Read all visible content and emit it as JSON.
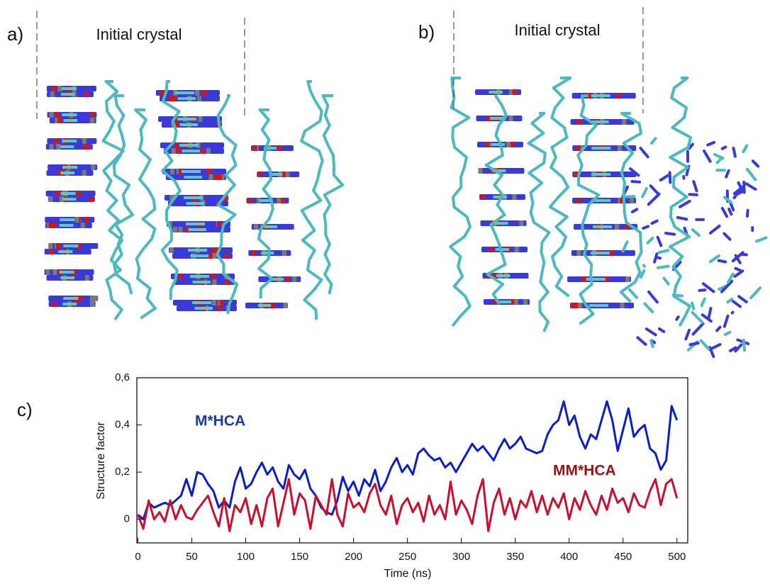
{
  "panels": {
    "a": {
      "label": "a)",
      "caption": "Initial crystal"
    },
    "b": {
      "label": "b)",
      "caption": "Initial crystal"
    },
    "c": {
      "label": "c)"
    }
  },
  "chart_data": {
    "type": "line",
    "xlabel": "Time (ns)",
    "ylabel": "Structure factor",
    "x": [
      0,
      5,
      10,
      15,
      20,
      25,
      30,
      35,
      40,
      45,
      50,
      55,
      60,
      65,
      70,
      75,
      80,
      85,
      90,
      95,
      100,
      105,
      110,
      115,
      120,
      125,
      130,
      135,
      140,
      145,
      150,
      155,
      160,
      165,
      170,
      175,
      180,
      185,
      190,
      195,
      200,
      205,
      210,
      215,
      220,
      225,
      230,
      235,
      240,
      245,
      250,
      255,
      260,
      265,
      270,
      275,
      280,
      285,
      290,
      295,
      300,
      305,
      310,
      315,
      320,
      325,
      330,
      335,
      340,
      345,
      350,
      355,
      360,
      365,
      370,
      375,
      380,
      385,
      390,
      395,
      400,
      405,
      410,
      415,
      420,
      425,
      430,
      435,
      440,
      445,
      450,
      455,
      460,
      465,
      470,
      475,
      480,
      485,
      490,
      495,
      500
    ],
    "series": [
      {
        "name": "M*HCA",
        "color": "#0a1ec4",
        "label_color": "#1c3c9c",
        "values": [
          0.02,
          0.0,
          0.07,
          0.05,
          0.06,
          0.07,
          0.06,
          0.08,
          0.1,
          0.17,
          0.1,
          0.2,
          0.19,
          0.15,
          0.12,
          0.05,
          0.08,
          0.05,
          0.16,
          0.22,
          0.13,
          0.15,
          0.2,
          0.24,
          0.19,
          0.22,
          0.16,
          0.13,
          0.23,
          0.19,
          0.17,
          0.21,
          0.13,
          0.1,
          0.05,
          0.03,
          0.02,
          0.08,
          0.18,
          0.12,
          0.16,
          0.1,
          0.17,
          0.14,
          0.21,
          0.12,
          0.16,
          0.22,
          0.26,
          0.2,
          0.23,
          0.19,
          0.28,
          0.3,
          0.27,
          0.25,
          0.26,
          0.22,
          0.24,
          0.2,
          0.24,
          0.28,
          0.32,
          0.29,
          0.31,
          0.28,
          0.25,
          0.3,
          0.34,
          0.3,
          0.32,
          0.35,
          0.3,
          0.29,
          0.28,
          0.29,
          0.36,
          0.4,
          0.42,
          0.5,
          0.4,
          0.44,
          0.35,
          0.3,
          0.36,
          0.34,
          0.42,
          0.5,
          0.42,
          0.29,
          0.38,
          0.47,
          0.35,
          0.38,
          0.4,
          0.3,
          0.28,
          0.21,
          0.25,
          0.48,
          0.42
        ]
      },
      {
        "name": "MM*HCA",
        "color": "#c8102e",
        "label_color": "#9c1010",
        "values": [
          0.02,
          -0.04,
          0.08,
          0.0,
          0.03,
          -0.01,
          0.08,
          0.0,
          0.06,
          0.01,
          0.0,
          0.04,
          0.07,
          0.1,
          0.03,
          -0.03,
          0.09,
          -0.05,
          0.06,
          0.03,
          0.09,
          -0.02,
          0.06,
          -0.03,
          0.09,
          0.13,
          -0.03,
          0.07,
          0.17,
          0.02,
          0.11,
          0.08,
          -0.04,
          0.1,
          0.06,
          0.02,
          0.17,
          0.02,
          -0.03,
          0.11,
          0.05,
          0.07,
          0.03,
          0.11,
          0.15,
          0.06,
          0.02,
          0.1,
          -0.02,
          0.06,
          0.09,
          0.03,
          0.07,
          -0.01,
          0.1,
          0.02,
          0.06,
          0.0,
          0.16,
          0.02,
          0.08,
          0.04,
          -0.02,
          0.1,
          0.17,
          -0.05,
          0.07,
          0.13,
          0.02,
          0.09,
          0.0,
          0.08,
          0.05,
          0.12,
          0.03,
          0.1,
          0.02,
          0.09,
          0.05,
          0.11,
          0.0,
          0.09,
          0.04,
          0.12,
          0.06,
          0.02,
          0.1,
          0.04,
          0.13,
          0.07,
          0.09,
          0.03,
          0.11,
          0.06,
          0.05,
          0.12,
          0.17,
          0.06,
          0.15,
          0.17,
          0.09
        ]
      }
    ],
    "xlim": [
      -1,
      510
    ],
    "ylim": [
      -0.1,
      0.6
    ],
    "xticks": [
      0,
      50,
      100,
      150,
      200,
      250,
      300,
      350,
      400,
      450,
      500
    ],
    "yticks": [
      0,
      {
        "value": 0.2,
        "label": "0,2"
      },
      {
        "value": 0.4,
        "label": "0,4"
      },
      {
        "value": 0.6,
        "label": "0,6"
      }
    ]
  }
}
